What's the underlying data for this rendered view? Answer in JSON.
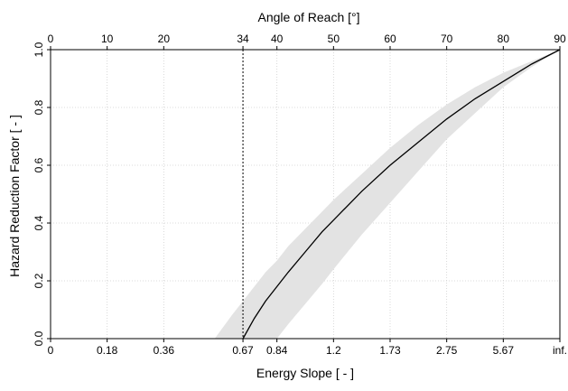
{
  "chart_data": {
    "type": "line",
    "title": "",
    "xlabel": "Energy Slope [ - ]",
    "ylabel": "Hazard Reduction Factor [ - ]",
    "x2label": "Angle of Reach [°]",
    "xlim": [
      0,
      90
    ],
    "ylim": [
      0,
      1
    ],
    "grid": true,
    "legend": "none",
    "x_ticks": [
      {
        "angle": 0,
        "label": "0"
      },
      {
        "angle": 10,
        "label": "0.18"
      },
      {
        "angle": 20,
        "label": "0.36"
      },
      {
        "angle": 34,
        "label": "0.67"
      },
      {
        "angle": 40,
        "label": "0.84"
      },
      {
        "angle": 50,
        "label": "1.2"
      },
      {
        "angle": 60,
        "label": "1.73"
      },
      {
        "angle": 70,
        "label": "2.75"
      },
      {
        "angle": 80,
        "label": "5.67"
      },
      {
        "angle": 90,
        "label": "inf."
      }
    ],
    "x2_ticks": [
      {
        "angle": 0,
        "label": "0"
      },
      {
        "angle": 10,
        "label": "10"
      },
      {
        "angle": 20,
        "label": "20"
      },
      {
        "angle": 34,
        "label": "34"
      },
      {
        "angle": 40,
        "label": "40"
      },
      {
        "angle": 50,
        "label": "50"
      },
      {
        "angle": 60,
        "label": "60"
      },
      {
        "angle": 70,
        "label": "70"
      },
      {
        "angle": 80,
        "label": "80"
      },
      {
        "angle": 90,
        "label": "90"
      }
    ],
    "y_ticks": [
      {
        "value": 0,
        "label": "0.0"
      },
      {
        "value": 0.2,
        "label": "0.2"
      },
      {
        "value": 0.4,
        "label": "0.4"
      },
      {
        "value": 0.6,
        "label": "0.6"
      },
      {
        "value": 0.8,
        "label": "0.8"
      },
      {
        "value": 1.0,
        "label": "1.0"
      }
    ],
    "reference_line": {
      "angle": 34
    },
    "series": [
      {
        "x": [
          34,
          36,
          38,
          40,
          42,
          45,
          48,
          50,
          55,
          60,
          65,
          70,
          75,
          80,
          85,
          90
        ],
        "y": [
          0.0,
          0.07,
          0.13,
          0.18,
          0.23,
          0.3,
          0.37,
          0.41,
          0.51,
          0.6,
          0.68,
          0.76,
          0.83,
          0.89,
          0.95,
          1.0
        ]
      }
    ],
    "band": {
      "x": [
        29,
        32,
        34,
        36,
        38,
        40,
        42,
        45,
        48,
        50,
        55,
        60,
        65,
        70,
        75,
        80,
        85,
        90
      ],
      "upper": [
        0.0,
        0.08,
        0.13,
        0.18,
        0.23,
        0.27,
        0.32,
        0.38,
        0.44,
        0.48,
        0.57,
        0.66,
        0.74,
        0.81,
        0.87,
        0.92,
        0.96,
        1.0
      ],
      "lower": [
        null,
        null,
        null,
        null,
        null,
        0.0,
        0.05,
        0.12,
        0.19,
        0.24,
        0.36,
        0.47,
        0.58,
        0.69,
        0.78,
        0.87,
        0.94,
        1.0
      ]
    },
    "colors": {
      "line": "#000000",
      "band": "#e3e3e3",
      "grid": "#cfcfcf",
      "axis": "#000000"
    }
  }
}
